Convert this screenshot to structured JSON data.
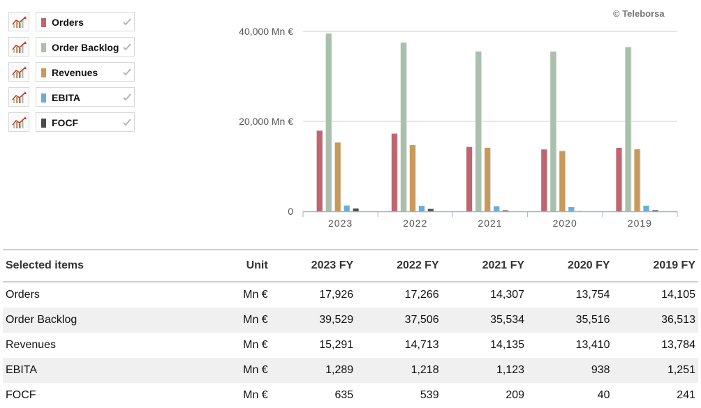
{
  "credit": "© Teleborsa",
  "legend": [
    {
      "label": "Orders",
      "color": "#c06570",
      "icon": "line-chart-icon"
    },
    {
      "label": "Order Backlog",
      "color": "#a9c1ac",
      "icon": "line-chart-icon"
    },
    {
      "label": "Revenues",
      "color": "#c79a5b",
      "icon": "line-chart-icon"
    },
    {
      "label": "EBITA",
      "color": "#6aaed6",
      "icon": "line-chart-icon"
    },
    {
      "label": "FOCF",
      "color": "#4a4a52",
      "icon": "line-chart-icon"
    }
  ],
  "chart_data": {
    "type": "bar",
    "categories": [
      "2023",
      "2022",
      "2021",
      "2020",
      "2019"
    ],
    "series": [
      {
        "name": "Orders",
        "color": "#c06570",
        "values": [
          17926,
          17266,
          14307,
          13754,
          14105
        ]
      },
      {
        "name": "Order Backlog",
        "color": "#a9c1ac",
        "values": [
          39529,
          37506,
          35534,
          35516,
          36513
        ]
      },
      {
        "name": "Revenues",
        "color": "#c79a5b",
        "values": [
          15291,
          14713,
          14135,
          13410,
          13784
        ]
      },
      {
        "name": "EBITA",
        "color": "#6aaed6",
        "values": [
          1289,
          1218,
          1123,
          938,
          1251
        ]
      },
      {
        "name": "FOCF",
        "color": "#4a4a52",
        "values": [
          635,
          539,
          209,
          40,
          241
        ]
      }
    ],
    "y_ticks": [
      0,
      20000,
      40000
    ],
    "y_tick_labels": [
      "0",
      "20,000 Mn €",
      "40,000 Mn €"
    ],
    "ylim": [
      0,
      40000
    ],
    "grid": true,
    "legend_position": "left"
  },
  "table": {
    "headers": [
      "Selected items",
      "Unit",
      "2023 FY",
      "2022 FY",
      "2021 FY",
      "2020 FY",
      "2019 FY"
    ],
    "rows": [
      [
        "Orders",
        "Mn €",
        "17,926",
        "17,266",
        "14,307",
        "13,754",
        "14,105"
      ],
      [
        "Order Backlog",
        "Mn €",
        "39,529",
        "37,506",
        "35,534",
        "35,516",
        "36,513"
      ],
      [
        "Revenues",
        "Mn €",
        "15,291",
        "14,713",
        "14,135",
        "13,410",
        "13,784"
      ],
      [
        "EBITA",
        "Mn €",
        "1,289",
        "1,218",
        "1,123",
        "938",
        "1,251"
      ],
      [
        "FOCF",
        "Mn €",
        "635",
        "539",
        "209",
        "40",
        "241"
      ]
    ]
  }
}
